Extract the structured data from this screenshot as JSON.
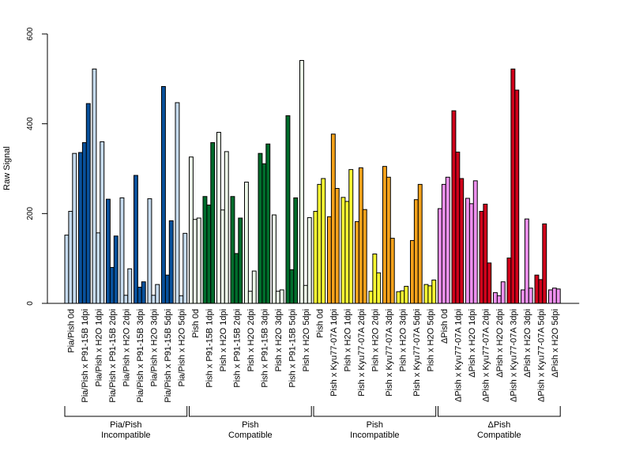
{
  "chart_data": {
    "type": "bar",
    "ylabel": "Raw Signal",
    "ylim": [
      0,
      600
    ],
    "yticks": [
      0,
      200,
      400,
      600
    ],
    "categories": [
      {
        "label": "Pia/Pish 0d",
        "color": "#c6dbef",
        "values": [
          152,
          205,
          334
        ]
      },
      {
        "label": "Pia/Pish x P91-15B 1dpi",
        "color": "#08519c",
        "values": [
          336,
          358,
          445
        ]
      },
      {
        "label": "Pia/Pish x H2O 1dpi",
        "color": "#c6dbef",
        "values": [
          522,
          157,
          360
        ]
      },
      {
        "label": "Pia/Pish x P91-15B 2dpi",
        "color": "#08519c",
        "values": [
          232,
          80,
          150
        ]
      },
      {
        "label": "Pia/Pish x H2O 2dpi",
        "color": "#c6dbef",
        "values": [
          235,
          18,
          77
        ]
      },
      {
        "label": "Pia/Pish x P91-15B 3dpi",
        "color": "#08519c",
        "values": [
          285,
          36,
          48
        ]
      },
      {
        "label": "Pia/Pish x H2O 3dpi",
        "color": "#c6dbef",
        "values": [
          233,
          18,
          42
        ]
      },
      {
        "label": "Pia/Pish x P91-15B 5dpi",
        "color": "#08519c",
        "values": [
          483,
          63,
          184
        ]
      },
      {
        "label": "Pia/Pish x H2O 5dpi",
        "color": "#c6dbef",
        "values": [
          447,
          17,
          156
        ]
      },
      {
        "label": "Pish 0d",
        "color": "#edf8e9",
        "values": [
          326,
          187,
          190
        ]
      },
      {
        "label": "Pish x P91-15B 1dpi",
        "color": "#006d2c",
        "values": [
          238,
          219,
          358
        ]
      },
      {
        "label": "Pish x H2O 1dpi",
        "color": "#edf8e9",
        "values": [
          381,
          208,
          338
        ]
      },
      {
        "label": "Pish x P91-15B 2dpi",
        "color": "#006d2c",
        "values": [
          238,
          111,
          190
        ]
      },
      {
        "label": "Pish x H2O 2dpi",
        "color": "#edf8e9",
        "values": [
          270,
          27,
          72
        ]
      },
      {
        "label": "Pish x P91-15B 3dpi",
        "color": "#006d2c",
        "values": [
          334,
          311,
          355
        ]
      },
      {
        "label": "Pish x H2O 3dpi",
        "color": "#edf8e9",
        "values": [
          197,
          27,
          30
        ]
      },
      {
        "label": "Pish x P91-15B 5dpi",
        "color": "#006d2c",
        "values": [
          418,
          75,
          235
        ]
      },
      {
        "label": "Pish x H2O 5dpi",
        "color": "#edf8e9",
        "values": [
          541,
          40,
          191
        ]
      },
      {
        "label": "Pish 0d",
        "color": "#ffff33",
        "values": [
          205,
          265,
          278
        ]
      },
      {
        "label": "Pish x Kyu77-07A 1dpi",
        "color": "#f5a21b",
        "values": [
          193,
          377,
          256
        ]
      },
      {
        "label": "Pish x H2O 1dpi",
        "color": "#ffff33",
        "values": [
          236,
          227,
          298
        ]
      },
      {
        "label": "Pish x Kyu77-07A 2dpi",
        "color": "#f5a21b",
        "values": [
          182,
          302,
          209
        ]
      },
      {
        "label": "Pish x H2O 2dpi",
        "color": "#ffff33",
        "values": [
          27,
          110,
          68
        ]
      },
      {
        "label": "Pish x Kyu77-07A 3dpi",
        "color": "#f5a21b",
        "values": [
          305,
          281,
          145
        ]
      },
      {
        "label": "Pish x H2O 3dpi",
        "color": "#ffff33",
        "values": [
          26,
          28,
          38
        ]
      },
      {
        "label": "Pish x Kyu77-07A 5dpi",
        "color": "#f5a21b",
        "values": [
          140,
          231,
          265
        ]
      },
      {
        "label": "Pish x H2O 5dpi",
        "color": "#ffff33",
        "values": [
          42,
          39,
          52
        ]
      },
      {
        "label": "ΔPish 0d",
        "color": "#ee90ee",
        "values": [
          211,
          265,
          281
        ]
      },
      {
        "label": "ΔPish x Kyu77-07A 1dpi",
        "color": "#d0021b",
        "values": [
          429,
          337,
          278
        ]
      },
      {
        "label": "ΔPish x H2O 1dpi",
        "color": "#ee90ee",
        "values": [
          234,
          222,
          273
        ]
      },
      {
        "label": "ΔPish x Kyu77-07A 2dpi",
        "color": "#d0021b",
        "values": [
          205,
          221,
          90
        ]
      },
      {
        "label": "ΔPish x H2O 2dpi",
        "color": "#ee90ee",
        "values": [
          24,
          17,
          48
        ]
      },
      {
        "label": "ΔPish x Kyu77-07A 3dpi",
        "color": "#d0021b",
        "values": [
          101,
          522,
          475
        ]
      },
      {
        "label": "ΔPish x H2O 3dpi",
        "color": "#ee90ee",
        "values": [
          30,
          188,
          34
        ]
      },
      {
        "label": "ΔPish x Kyu77-07A 5dpi",
        "color": "#d0021b",
        "values": [
          63,
          53,
          177
        ]
      },
      {
        "label": "ΔPish x H2O 5dpi",
        "color": "#ee90ee",
        "values": [
          30,
          34,
          32
        ]
      }
    ],
    "groups": [
      {
        "line1": "Pia/Pish",
        "line2": "Incompatible",
        "first": 0,
        "last": 8
      },
      {
        "line1": "Pish",
        "line2": "Compatible",
        "first": 9,
        "last": 17
      },
      {
        "line1": "Pish",
        "line2": "Incompatible",
        "first": 18,
        "last": 26
      },
      {
        "line1": "ΔPish",
        "line2": "Compatible",
        "first": 27,
        "last": 35
      }
    ]
  }
}
